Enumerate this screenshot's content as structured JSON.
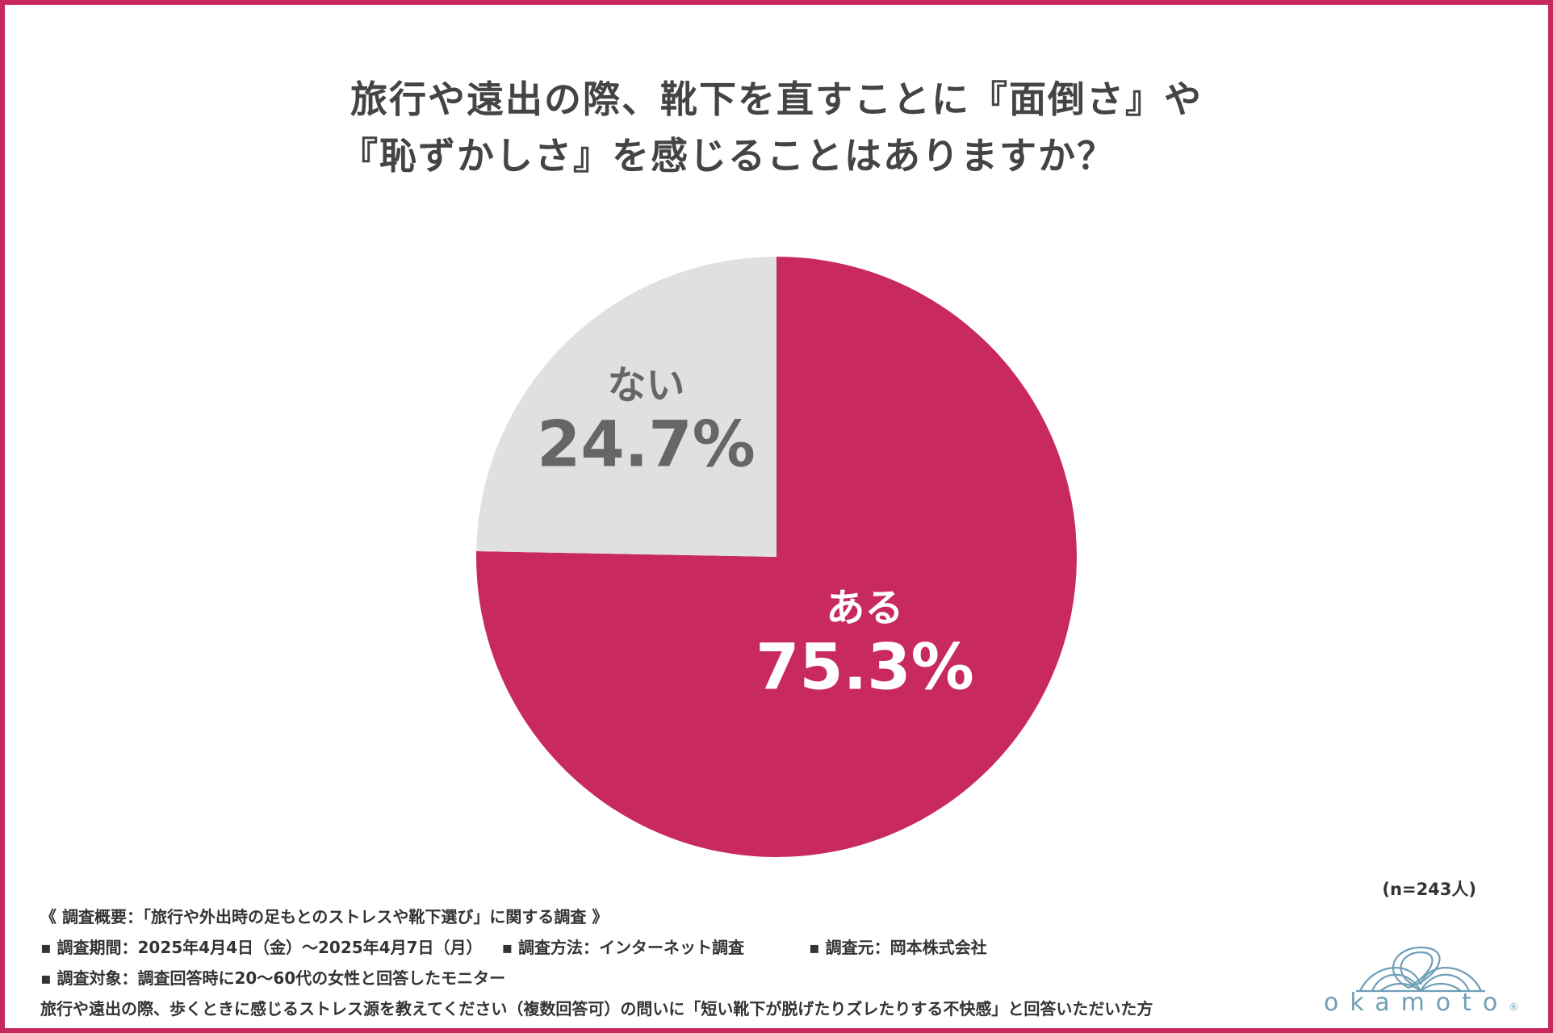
{
  "title": {
    "line1": "旅行や遠出の際、靴下を直すことに『面倒さ』や",
    "line2": "『恥ずかしさ』を感じることはありますか？"
  },
  "chart_data": {
    "type": "pie",
    "start": "12 o'clock",
    "direction": "clockwise",
    "slices": [
      {
        "label": "ある",
        "value": 75.3,
        "value_label": "75.3%",
        "color": "#c8295f",
        "text_color": "#ffffff"
      },
      {
        "label": "ない",
        "value": 24.7,
        "value_label": "24.7%",
        "color": "#e0e0e0",
        "text_color": "#666666"
      }
    ],
    "note": "(n=243人)"
  },
  "notes": {
    "summary": "《 調査概要：「旅行や外出時の足もとのストレスや靴下選び」に関する調査 》",
    "period": "▪ 調査期間：2025年4月4日（金）〜2025年4月7日（月）",
    "method": "▪ 調査方法：インターネット調査",
    "source": "▪ 調査元：岡本株式会社",
    "target": "▪ 調査対象：調査回答時に20〜60代の女性と回答したモニター",
    "condition": "旅行や遠出の際、歩くときに感じるストレス源を教えてください（複数回答可）の問いに「短い靴下が脱げたりズレたりする不快感」と回答いただいた方"
  },
  "brand": {
    "name": "okamoto",
    "mark": "®",
    "color": "#6f9fb7"
  }
}
